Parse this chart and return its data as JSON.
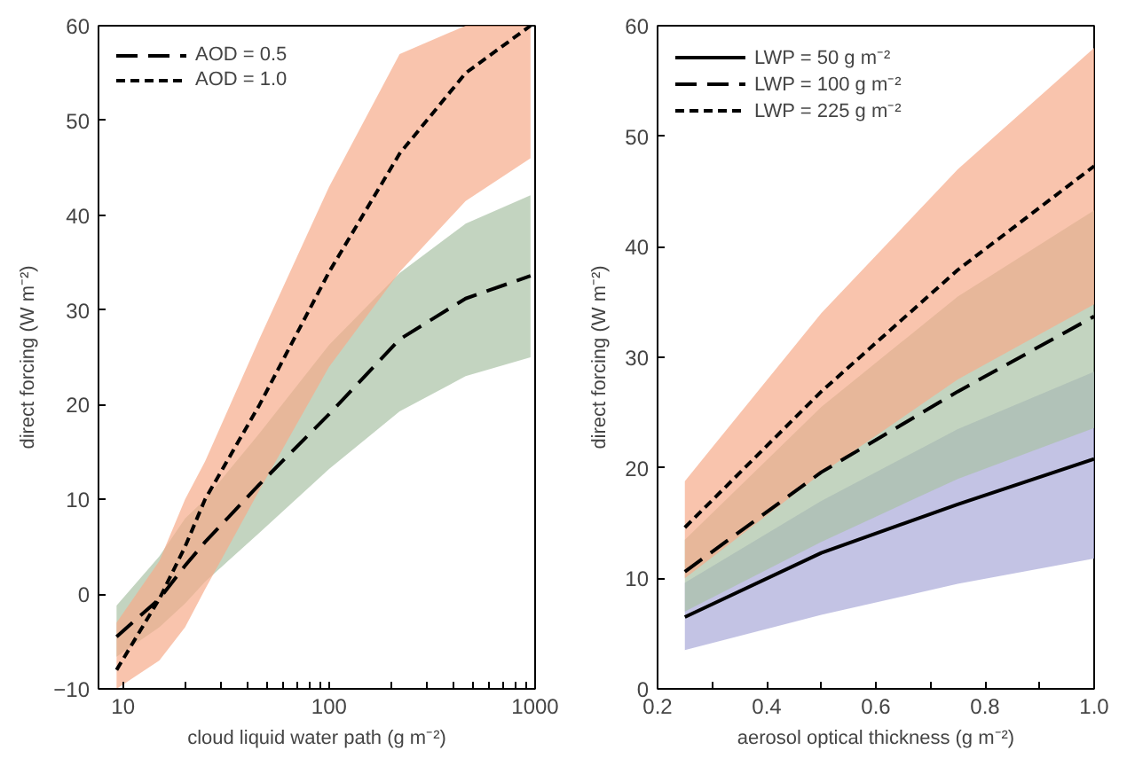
{
  "chart_data": [
    {
      "type": "line",
      "xlabel": "cloud liquid water path (g m⁻²)",
      "ylabel": "direct forcing (W m⁻²)",
      "log": "x",
      "x": [
        9.3,
        15,
        20,
        25,
        46,
        100,
        220,
        460,
        950
      ],
      "xlim": [
        7.6,
        1000
      ],
      "xticks": [
        10,
        {
          "value": 20,
          "label": null
        },
        {
          "value": 30,
          "label": null
        },
        {
          "value": 40,
          "label": null
        },
        {
          "value": 50,
          "label": null
        },
        {
          "value": 60,
          "label": null
        },
        {
          "value": 70,
          "label": null
        },
        {
          "value": 80,
          "label": null
        },
        {
          "value": 90,
          "label": null
        },
        100,
        {
          "value": 200,
          "label": null
        },
        {
          "value": 300,
          "label": null
        },
        {
          "value": 400,
          "label": null
        },
        {
          "value": 500,
          "label": null
        },
        {
          "value": 600,
          "label": null
        },
        {
          "value": 700,
          "label": null
        },
        {
          "value": 800,
          "label": null
        },
        {
          "value": 900,
          "label": null
        },
        1000
      ],
      "ylim": [
        -10,
        60
      ],
      "yticks": [
        -10,
        0,
        10,
        20,
        30,
        40,
        50,
        60
      ],
      "grid": false,
      "legend": "top left",
      "colors": [
        "#a9c2a5",
        "#f6ab8a"
      ],
      "series": [
        {
          "name": "AOD = 0.5",
          "color": "#000000",
          "line_style": "dashed",
          "values": [
            -4.5,
            -0.5,
            3,
            5.5,
            11.6,
            19,
            26.9,
            31.2,
            33.6
          ],
          "lower": [
            -6.6,
            -3.5,
            -1,
            1.3,
            6.5,
            13.2,
            19.3,
            23,
            25
          ],
          "upper": [
            -1.2,
            4,
            8,
            10,
            17,
            26.3,
            33.9,
            39.1,
            42.1
          ]
        },
        {
          "name": "AOD = 1.0",
          "color": "#000000",
          "line_style": "dotted",
          "values": [
            -8,
            -0.5,
            5,
            10,
            20,
            34,
            46.5,
            55,
            60
          ],
          "lower": [
            -10,
            -7,
            -3.5,
            0.5,
            11,
            24,
            34,
            41.5,
            46
          ],
          "upper": [
            -3,
            3.5,
            10,
            14,
            27,
            43,
            57,
            60,
            60
          ]
        }
      ]
    },
    {
      "type": "line",
      "xlabel": "aerosol optical thickness (g m⁻²)",
      "ylabel": "direct forcing (W m⁻²)",
      "x": [
        0.25,
        0.5,
        0.75,
        1.0
      ],
      "xlim": [
        0.2,
        1.0
      ],
      "xticks": [
        {
          "value": 0.2,
          "label": "0.2"
        },
        {
          "value": 0.3,
          "label": null
        },
        {
          "value": 0.4,
          "label": "0.4"
        },
        {
          "value": 0.5,
          "label": null
        },
        {
          "value": 0.6,
          "label": "0.6"
        },
        {
          "value": 0.7,
          "label": null
        },
        {
          "value": 0.8,
          "label": "0.8"
        },
        {
          "value": 0.9,
          "label": null
        },
        {
          "value": 1.0,
          "label": "1.0"
        }
      ],
      "ylim": [
        0,
        60
      ],
      "yticks": [
        0,
        10,
        20,
        30,
        40,
        50,
        60
      ],
      "grid": false,
      "legend": "top left",
      "colors": [
        "#a9a9d8",
        "#a9c2a5",
        "#f6ab8a"
      ],
      "series": [
        {
          "name": "LWP = 50 g m⁻²",
          "color": "#000000",
          "line_style": "solid",
          "values": [
            6.5,
            12.3,
            16.7,
            20.8
          ],
          "lower": [
            3.5,
            6.7,
            9.5,
            11.8
          ],
          "upper": [
            9.6,
            17,
            23.5,
            28.7
          ]
        },
        {
          "name": "LWP = 100 g m⁻²",
          "color": "#000000",
          "line_style": "dashed",
          "values": [
            10.6,
            19.6,
            26.9,
            33.7
          ],
          "lower": [
            7,
            13.3,
            19,
            23.6
          ],
          "upper": [
            13.5,
            25.5,
            35.5,
            43.3
          ]
        },
        {
          "name": "LWP = 225 g m⁻²",
          "color": "#000000",
          "line_style": "dotted",
          "values": [
            14.6,
            26.9,
            37.9,
            47.3
          ],
          "lower": [
            10,
            19.5,
            28,
            34.8
          ],
          "upper": [
            18.8,
            34,
            47,
            58
          ]
        }
      ]
    }
  ]
}
